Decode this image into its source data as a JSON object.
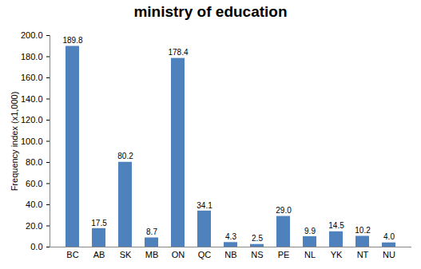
{
  "chart_data": {
    "type": "bar",
    "title": "ministry of education",
    "y_label": "Frequency index (x1,000)",
    "categories": [
      "BC",
      "AB",
      "SK",
      "MB",
      "ON",
      "QC",
      "NB",
      "NS",
      "PE",
      "NL",
      "YK",
      "NT",
      "NU"
    ],
    "values": [
      189.8,
      17.5,
      80.2,
      8.7,
      178.4,
      34.1,
      4.3,
      2.5,
      29.0,
      9.9,
      14.5,
      10.2,
      4.0
    ],
    "value_labels": [
      "189.8",
      "17.5",
      "80.2",
      "8.7",
      "178.4",
      "34.1",
      "4.3",
      "2.5",
      "29.0",
      "9.9",
      "14.5",
      "10.2",
      "4.0"
    ],
    "color": "#4f81bd",
    "ylim": [
      0,
      200
    ],
    "yticks": [
      {
        "value": 0,
        "label": "0.0"
      },
      {
        "value": 20,
        "label": "20.0"
      },
      {
        "value": 40,
        "label": "40.0"
      },
      {
        "value": 60,
        "label": "60.0"
      },
      {
        "value": 80,
        "label": "80.0"
      },
      {
        "value": 100,
        "label": "100.0"
      },
      {
        "value": 120,
        "label": "120.0"
      },
      {
        "value": 140,
        "label": "140.0"
      },
      {
        "value": 160,
        "label": "160.0"
      },
      {
        "value": 180,
        "label": "180.0"
      },
      {
        "value": 200,
        "label": "200.0"
      }
    ],
    "grid": false,
    "data_labels": true
  }
}
